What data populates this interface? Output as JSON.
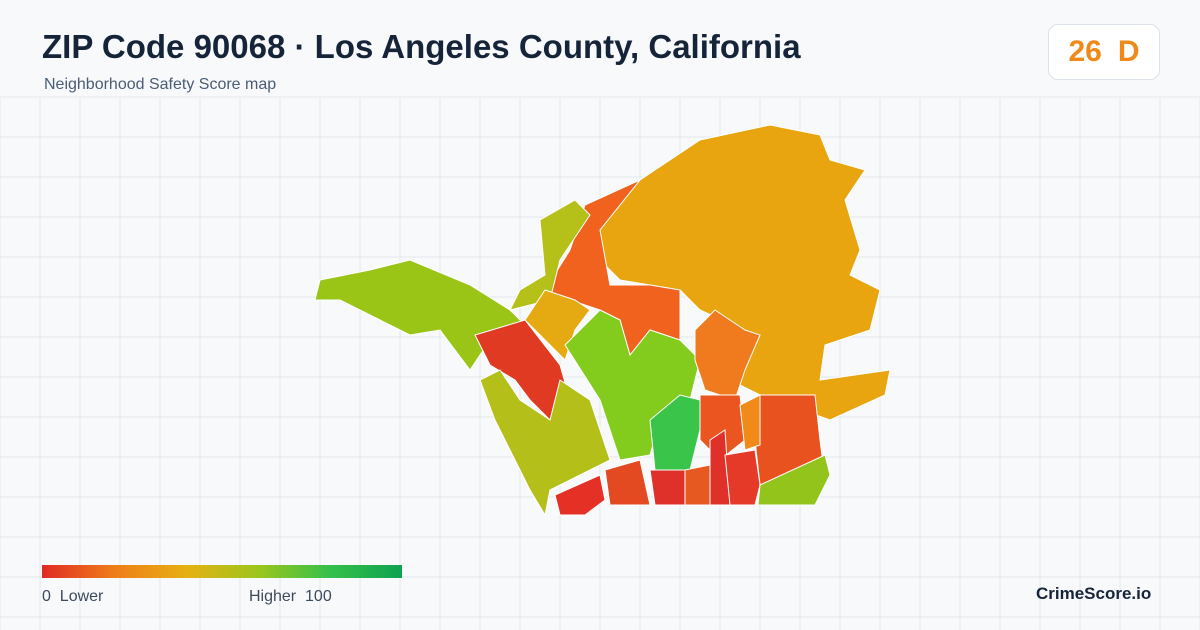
{
  "header": {
    "title": "ZIP Code 90068 · Los Angeles County, California",
    "subtitle": "Neighborhood Safety Score map"
  },
  "score": {
    "value": 26,
    "grade": "D"
  },
  "legend": {
    "min": 0,
    "min_label": "Lower",
    "max_label": "Higher",
    "max": 100
  },
  "footer": {
    "brand": "CrimeScore.io"
  }
}
